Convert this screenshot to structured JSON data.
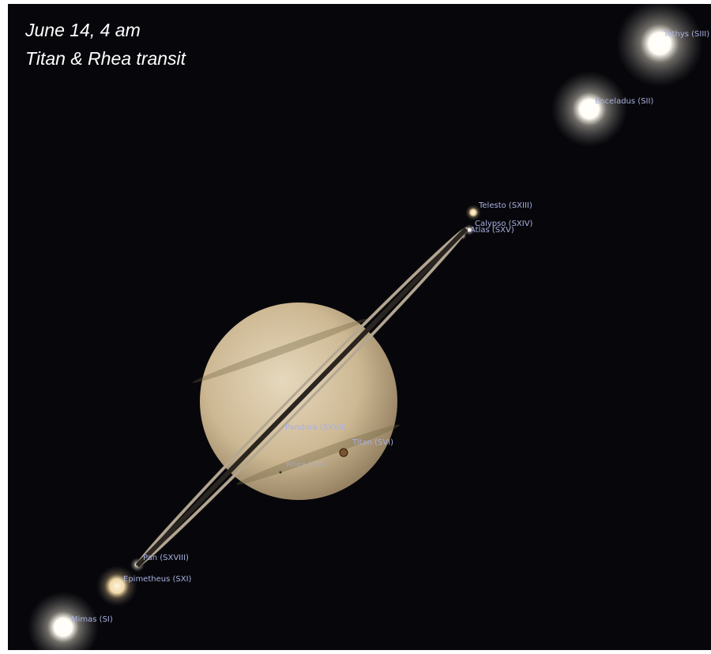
{
  "caption": {
    "line1": "June 14, 4 am",
    "line2": "Titan & Rhea transit"
  },
  "labels": [
    "Tethys (SIII)",
    "Enceladus (SII)",
    "Telesto (SXIII)",
    "Calypso (SXIV)",
    "Atlas (SXV)",
    "Pandora (SXVII)",
    "Titan (SVI)",
    "Rhea (SV)",
    "Pan (SXVIII)",
    "Epimetheus (SXI)",
    "Mimas (SI)"
  ]
}
